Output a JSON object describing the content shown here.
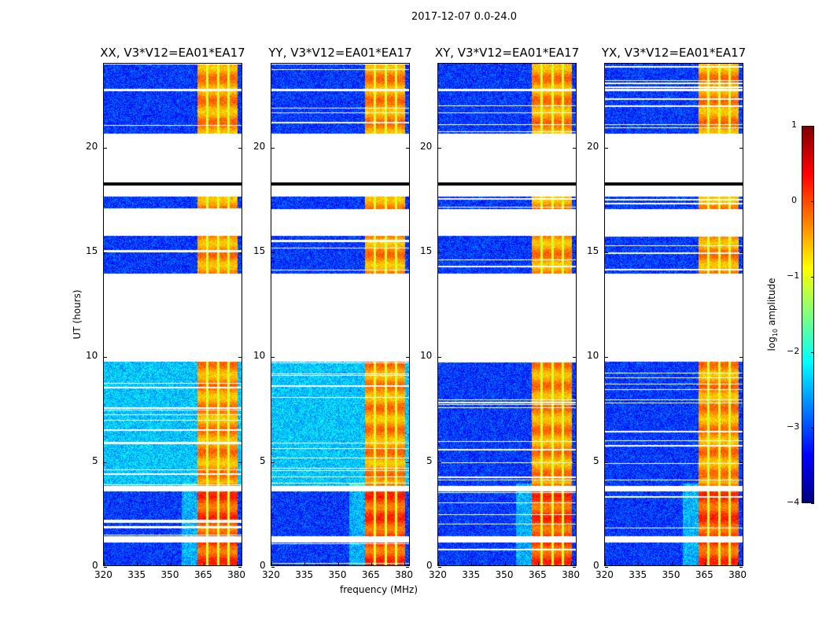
{
  "chart_data": {
    "type": "heatmap",
    "title": "2017-12-07 0.0-24.0",
    "xlabel": "frequency (MHz)",
    "ylabel": "UT (hours)",
    "xlim": [
      320,
      382.8
    ],
    "ylim": [
      0,
      24
    ],
    "xticks": [
      "320",
      "335",
      "350",
      "365",
      "380"
    ],
    "xtick_values": [
      320,
      335,
      350,
      365,
      380
    ],
    "yticks": [
      "0",
      "5",
      "10",
      "15",
      "20"
    ],
    "ytick_values": [
      0,
      5,
      10,
      15,
      20
    ],
    "panels": [
      {
        "title": "XX, V3*V12=EA01*EA17",
        "ylabel_shown": true
      },
      {
        "title": "YY, V3*V12=EA01*EA17"
      },
      {
        "title": "XY, V3*V12=EA01*EA17"
      },
      {
        "title": "YX, V3*V12=EA01*EA17"
      }
    ],
    "data_segments_hours": [
      [
        0,
        1.2
      ],
      [
        1.5,
        3.6
      ],
      [
        3.9,
        9.8
      ],
      [
        14.0,
        15.8
      ],
      [
        17.1,
        17.7
      ],
      [
        20.7,
        22.7
      ],
      [
        22.8,
        24
      ]
    ],
    "bright_band_mhz": [
      362,
      380
    ],
    "colorbar": {
      "label_prefix": "log",
      "label_sub": "10",
      "label_suffix": " amplitude",
      "range": [
        -4,
        1
      ],
      "ticks": [
        "1",
        "0",
        "−1",
        "−2",
        "−3",
        "−4"
      ],
      "tick_values": [
        1,
        0,
        -1,
        -2,
        -3,
        -4
      ],
      "colormap": "jet"
    }
  }
}
